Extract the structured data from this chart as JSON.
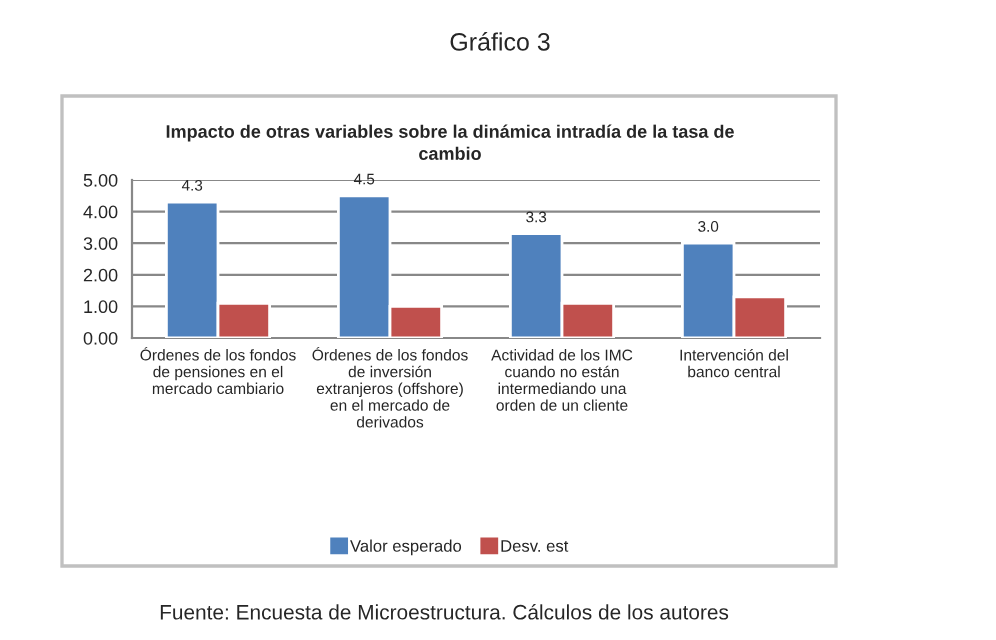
{
  "chart_data": {
    "type": "bar",
    "title": "Gráfico 3",
    "subtitle": "Impacto de otras variables sobre la dinámica intradía de la tasa de\ncambio",
    "categories": [
      "Órdenes de los fondos\nde pensiones en el\nmercado cambiario",
      "Órdenes de los fondos\nde inversión\nextranjeros (offshore)\nen el mercado de\nderivados",
      "Actividad de los IMC\ncuando no están\nintermediando una\norden de un cliente",
      "Intervención del\nbanco central"
    ],
    "series": [
      {
        "name": "Valor esperado",
        "color": "#4f81bd",
        "values": [
          4.3,
          4.5,
          3.3,
          3.0
        ],
        "value_labels": [
          "4.3",
          "4.5",
          "3.3",
          "3.0"
        ]
      },
      {
        "name": "Desv. est",
        "color": "#c0504d",
        "values": [
          1.1,
          1.0,
          1.1,
          1.3
        ]
      }
    ],
    "ylim": [
      0,
      5
    ],
    "yticks": [
      {
        "value": 0,
        "label": "0.00"
      },
      {
        "value": 1,
        "label": "1.00"
      },
      {
        "value": 2,
        "label": "2.00"
      },
      {
        "value": 3,
        "label": "3.00"
      },
      {
        "value": 4,
        "label": "4.00"
      },
      {
        "value": 5,
        "label": "5.00"
      }
    ],
    "grid": "y",
    "legend": "bottom",
    "annotations": [
      "Fuente: Encuesta de Microestructura. Cálculos de los autores"
    ]
  }
}
